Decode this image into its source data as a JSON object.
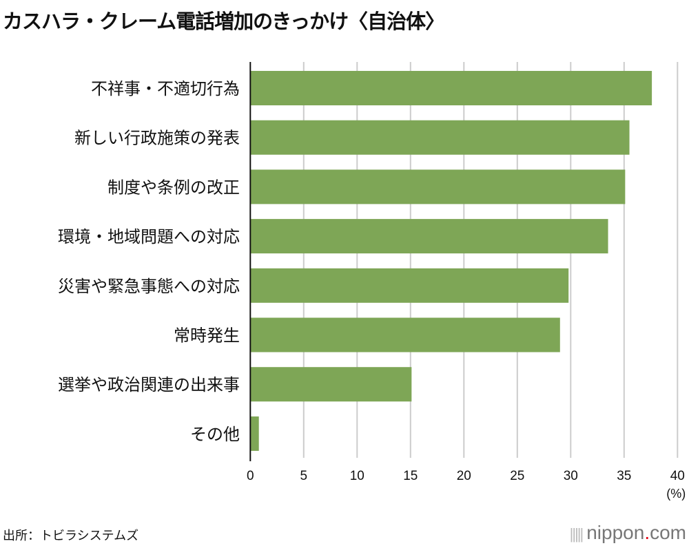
{
  "chart_data": {
    "type": "bar",
    "orientation": "horizontal",
    "title": "カスハラ・クレーム電話増加のきっかけ〈自治体〉",
    "categories": [
      "不祥事・不適切行為",
      "新しい行政施策の発表",
      "制度や条例の改正",
      "環境・地域問題への対応",
      "災害や緊急事態への対応",
      "常時発生",
      "選挙や政治関連の出来事",
      "その他"
    ],
    "values": [
      37.6,
      35.5,
      35.1,
      33.5,
      29.8,
      29.0,
      15.1,
      0.8
    ],
    "xlim": [
      0,
      40
    ],
    "xticks": [
      "0",
      "5",
      "10",
      "15",
      "20",
      "25",
      "30",
      "35",
      "40"
    ],
    "xunit": "(%)",
    "grid": true,
    "bar_color": "#7ea656",
    "grid_color": "#cccccc"
  },
  "source": "出所：トビラシステムズ",
  "logo": {
    "name": "nippon",
    "dot": ".",
    "suffix": "com"
  }
}
